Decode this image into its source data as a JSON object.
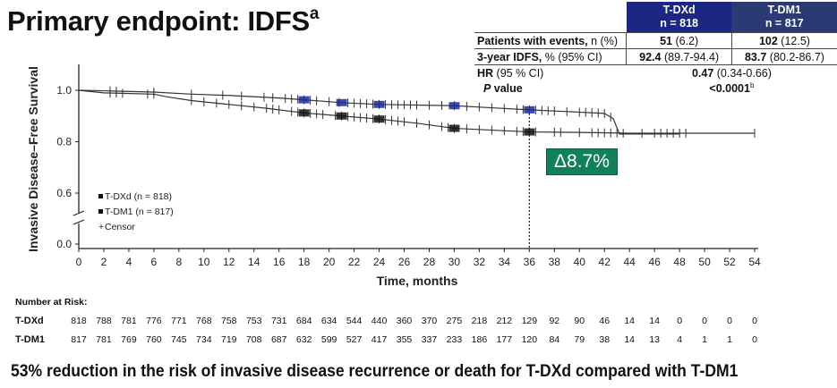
{
  "title": "Primary endpoint: IDFS",
  "title_sup": "a",
  "stats_table": {
    "headers": [
      {
        "arm": "T-DXd",
        "n": "n = 818"
      },
      {
        "arm": "T-DM1",
        "n": "n = 817"
      }
    ],
    "rows": [
      {
        "label_bold": "Patients with events,",
        "label_rest": " n (%)",
        "cells": [
          {
            "bold": "51",
            "rest": " (6.2)"
          },
          {
            "bold": "102",
            "rest": " (12.5)"
          }
        ]
      },
      {
        "label_bold": "3-year IDFS,",
        "label_rest": " % (95% CI)",
        "cells": [
          {
            "bold": "92.4",
            "rest": " (89.7-94.4)"
          },
          {
            "bold": "83.7",
            "rest": " (80.2-86.7)"
          }
        ]
      }
    ],
    "hr": {
      "label_bold": "HR",
      "label_rest": " (95 % CI)",
      "value_bold": "0.47",
      "value_rest": " (0.34-0.66)"
    },
    "p": {
      "label_italic": "P",
      "label_rest": " value",
      "value": "<0.0001",
      "value_sup": "b"
    }
  },
  "delta_label": "Δ8.7%",
  "colors": {
    "tdxd_marker": "#1c2a9a",
    "tdm1_marker": "#111111",
    "delta_box": "#12805a",
    "header_tdxd": "#1c2783",
    "header_tdm1": "#2b3a72"
  },
  "chart_data": {
    "type": "line",
    "subtype": "kaplan-meier",
    "xlabel": "Time, months",
    "ylabel": "Invasive Disease–Free Survival",
    "xlim": [
      0,
      54
    ],
    "xticks": [
      0,
      2,
      4,
      6,
      8,
      10,
      12,
      14,
      16,
      18,
      20,
      22,
      24,
      26,
      28,
      30,
      32,
      34,
      36,
      38,
      40,
      42,
      44,
      46,
      48,
      50,
      52,
      54
    ],
    "yticks": [
      "0.0",
      "0.6",
      "0.8",
      "1.0"
    ],
    "y_axis_break": [
      0.0,
      0.6
    ],
    "reference_line_x": 36,
    "legend_placement": "bottom-left",
    "legend": [
      "T-DXd (n = 818)",
      "T-DM1 (n = 817)",
      "Censor"
    ],
    "series": [
      {
        "name": "T-DXd",
        "x": [
          0,
          2,
          6,
          9,
          12,
          16,
          18,
          21,
          24,
          30,
          33,
          36,
          40,
          42,
          42.7,
          43.2,
          48
        ],
        "y": [
          1.0,
          0.998,
          0.993,
          0.985,
          0.98,
          0.97,
          0.963,
          0.952,
          0.945,
          0.94,
          0.932,
          0.924,
          0.915,
          0.91,
          0.89,
          0.83,
          0.83
        ],
        "censor_x": [
          2.5,
          3,
          6,
          9,
          11.5,
          13,
          14.8,
          15.5,
          16.5,
          17,
          17.5,
          18,
          18.5,
          19,
          20,
          20.8,
          21.5,
          22,
          22.5,
          23,
          23.5,
          24,
          24.5,
          25,
          25.5,
          26,
          26.5,
          27,
          28,
          29,
          30,
          31,
          32,
          33,
          34,
          35,
          35.5,
          36,
          36.5,
          37,
          37.5,
          38,
          39,
          40,
          40.5,
          41,
          41.5,
          42,
          42.5
        ]
      },
      {
        "name": "T-DM1",
        "x": [
          0,
          2,
          6,
          7,
          9,
          12,
          15,
          18,
          21,
          24,
          27,
          30,
          33,
          36,
          40,
          44,
          54
        ],
        "y": [
          1.0,
          0.99,
          0.985,
          0.975,
          0.96,
          0.945,
          0.93,
          0.912,
          0.9,
          0.888,
          0.872,
          0.852,
          0.845,
          0.838,
          0.836,
          0.833,
          0.833
        ],
        "censor_x": [
          2.5,
          3,
          3.5,
          5.5,
          6,
          9,
          10,
          11,
          12,
          13,
          14,
          15,
          15.5,
          16,
          17,
          17.5,
          18,
          18.5,
          19,
          19.5,
          20.5,
          21,
          21.5,
          22,
          22.5,
          23,
          23.5,
          24,
          24.5,
          25,
          25.5,
          26,
          27,
          28,
          29,
          29.5,
          30,
          31,
          32,
          33,
          34,
          35,
          35.5,
          36,
          36.5,
          38,
          38.5,
          40,
          41,
          41.5,
          42,
          42.5,
          43,
          43.5,
          45,
          46,
          46.5,
          47,
          47.5,
          48,
          48.5,
          54
        ]
      }
    ]
  },
  "number_at_risk": {
    "title": "Number at Risk:",
    "rows": [
      {
        "label": "T-DXd",
        "values": [
          "818",
          "788",
          "781",
          "776",
          "771",
          "768",
          "758",
          "753",
          "731",
          "684",
          "634",
          "544",
          "440",
          "360",
          "370",
          "275",
          "218",
          "212",
          "129",
          "92",
          "90",
          "46",
          "14",
          "14",
          "0",
          "0",
          "0",
          "0"
        ]
      },
      {
        "label": "T-DM1",
        "values": [
          "817",
          "781",
          "769",
          "760",
          "745",
          "734",
          "719",
          "708",
          "687",
          "632",
          "599",
          "527",
          "417",
          "355",
          "337",
          "233",
          "186",
          "177",
          "120",
          "84",
          "79",
          "38",
          "14",
          "13",
          "4",
          "1",
          "1",
          "0"
        ]
      }
    ]
  },
  "footer": "53% reduction in the risk of invasive disease recurrence or death for T-DXd compared with T-DM1"
}
